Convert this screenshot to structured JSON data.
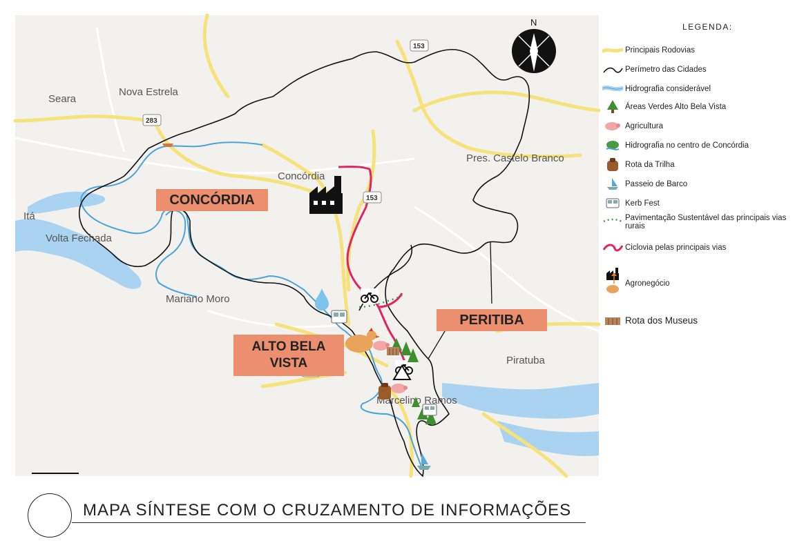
{
  "map": {
    "compass_label": "N",
    "places": {
      "seara": "Seara",
      "nova_estrela": "Nova Estrela",
      "concordia_town": "Concórdia",
      "ita": "Itá",
      "volta_fechada": "Volta Fechada",
      "mariano_moro": "Mariano Moro",
      "pres_castelo_branco": "Pres. Castelo Branco",
      "piratuba": "Piratuba",
      "arcelino_ramos": "Marcelino Ramos"
    },
    "shields": [
      "153",
      "283",
      "153",
      "153"
    ],
    "region_labels": {
      "concordia": "CONCÓRDIA",
      "alto_bela_vista": "ALTO BELA VISTA",
      "peritiba": "PERITIBA"
    },
    "colors": {
      "road": "#f6e27a",
      "river": "#4aa3d8",
      "perimeter": "#111111",
      "cycle": "#e0245e",
      "label_bg": "#ec8f6f",
      "green": "#3e8f2f"
    }
  },
  "legend": {
    "title": "LEGENDA:",
    "items": [
      {
        "icon": "road-icon",
        "label": "Principais Rodovias"
      },
      {
        "icon": "perimeter-icon",
        "label": "Perímetro das Cidades"
      },
      {
        "icon": "river-icon",
        "label": "Hidrografia considerável"
      },
      {
        "icon": "tree-icon",
        "label": "Áreas Verdes Alto Bela Vista"
      },
      {
        "icon": "pig-icon",
        "label": "Agricultura"
      },
      {
        "icon": "fountain-icon",
        "label": "Hidrografia no centro de Concórdia"
      },
      {
        "icon": "backpack-icon",
        "label": "Rota da Trilha"
      },
      {
        "icon": "boat-icon",
        "label": "Passeio de Barco"
      },
      {
        "icon": "bus-icon",
        "label": "Kerb Fest"
      },
      {
        "icon": "dotted-path-icon",
        "label": "Pavimentação Sustentável das principais vias rurais"
      },
      {
        "icon": "cycle-path-icon",
        "label": "Ciclovia pelas principais vias"
      },
      {
        "icon": "agro-icon",
        "label": "Agronegócio"
      },
      {
        "icon": "museum-icon",
        "label": "Rota dos Museus"
      }
    ]
  },
  "footer": {
    "title": "MAPA SÍNTESE COM O CRUZAMENTO DE INFORMAÇÕES"
  }
}
